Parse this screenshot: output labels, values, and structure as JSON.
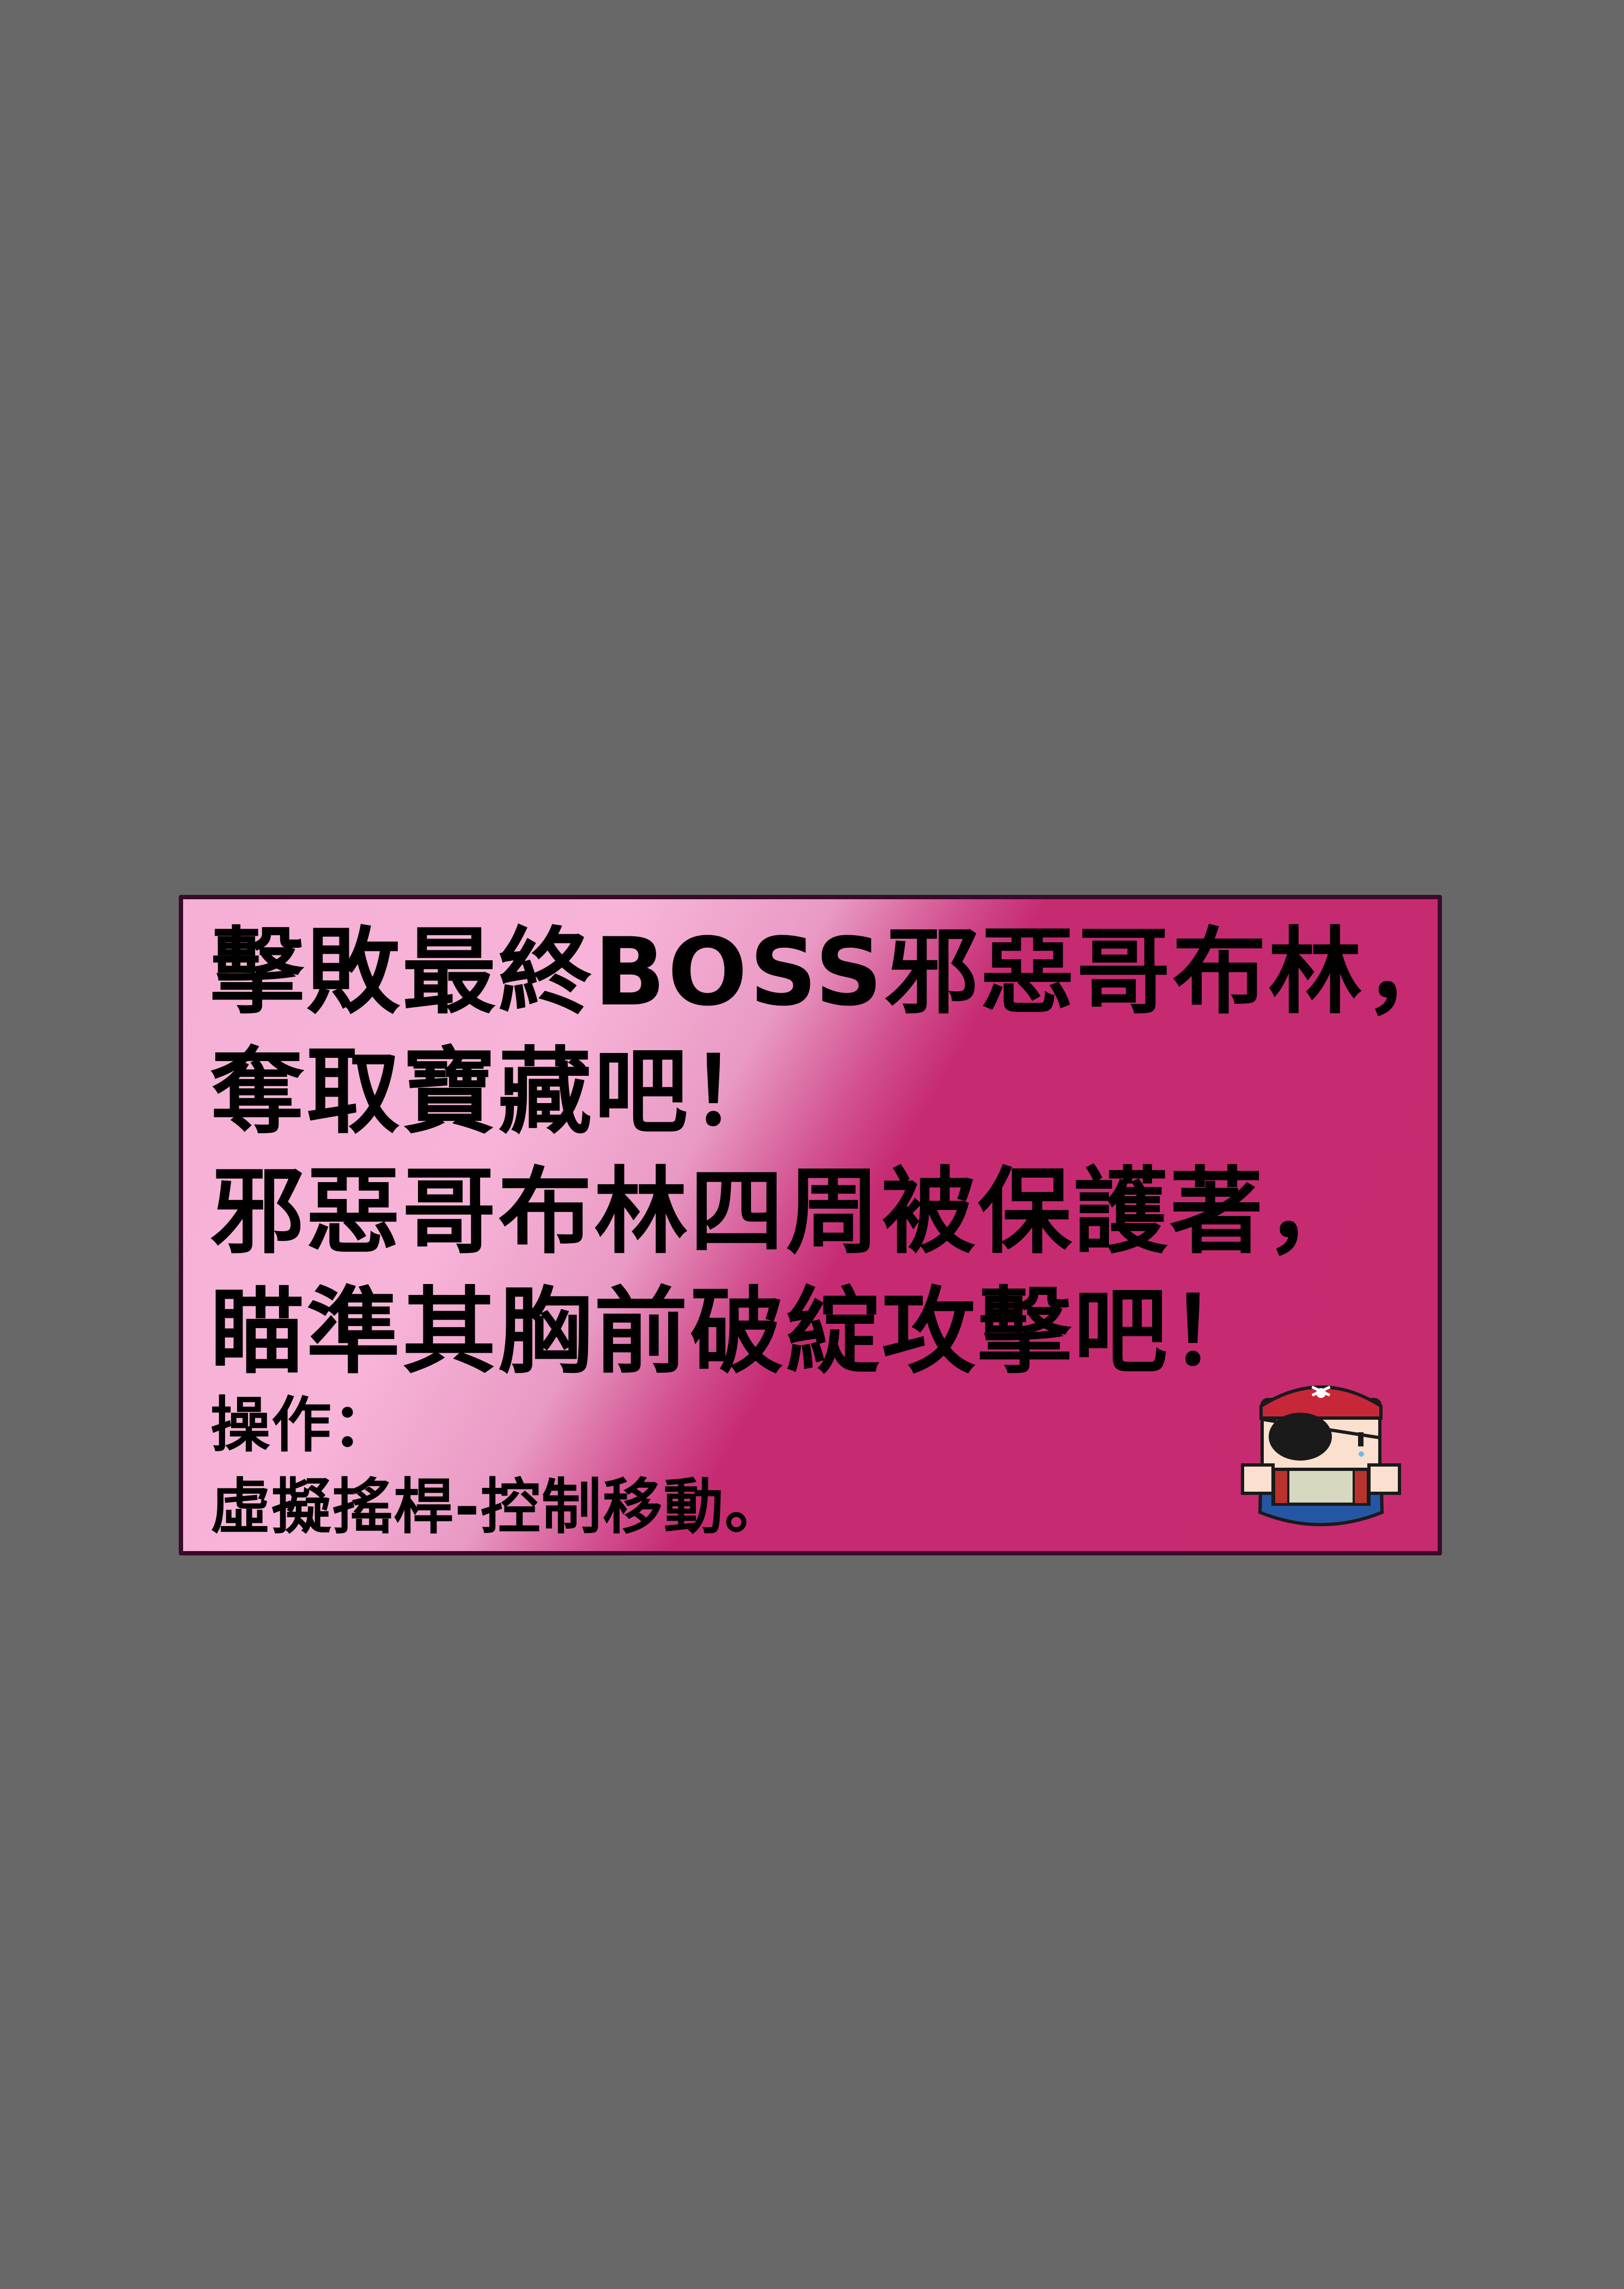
{
  "dialog": {
    "line1": "擊敗最終BOSS邪惡哥布林，",
    "line2": "奪取寶藏吧！",
    "line3": "邪惡哥布林四周被保護著，",
    "line4": "瞄準其胸前破綻攻擊吧！",
    "controls_title": "操作：",
    "controls_detail": "虛擬搖桿-控制移動。"
  },
  "colors": {
    "background": "#686868",
    "panel_light": "#f6b0d6",
    "panel_dark": "#c62b70",
    "panel_border": "#3a0a2a"
  },
  "mascot": {
    "icon": "pirate-character-icon"
  }
}
